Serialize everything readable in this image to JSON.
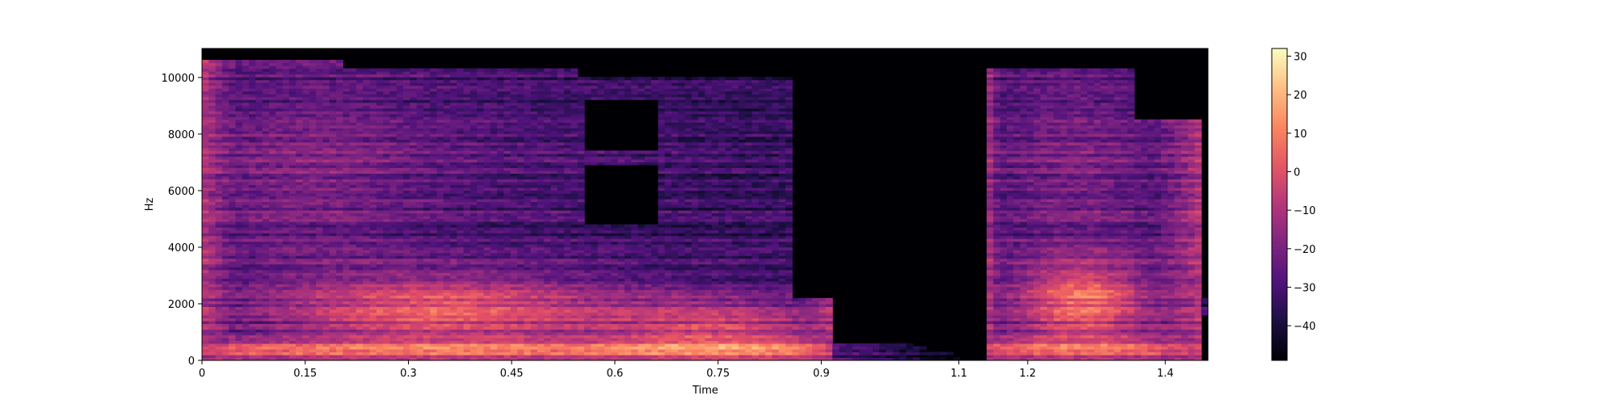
{
  "chart_data": {
    "type": "heatmap",
    "title": "",
    "xlabel": "Time",
    "ylabel": "Hz",
    "xlim": [
      0,
      1.462
    ],
    "ylim": [
      0,
      11025
    ],
    "x_ticks": [
      0,
      0.15,
      0.3,
      0.45,
      0.6,
      0.75,
      0.9,
      1.1,
      1.2,
      1.4
    ],
    "x_tick_labels": [
      "0",
      "0.15",
      "0.3",
      "0.45",
      "0.6",
      "0.75",
      "0.9",
      "1.1",
      "1.2",
      "1.4"
    ],
    "y_ticks": [
      0,
      2000,
      4000,
      6000,
      8000,
      10000
    ],
    "y_tick_labels": [
      "0",
      "2000",
      "4000",
      "6000",
      "8000",
      "10000"
    ],
    "colorbar": {
      "colormap": "magma",
      "range": [
        -49,
        32
      ],
      "ticks": [
        -40,
        -30,
        -20,
        -10,
        0,
        10,
        20,
        30
      ],
      "tick_labels": [
        "−40",
        "−30",
        "−20",
        "−10",
        "0",
        "10",
        "20",
        "30"
      ]
    },
    "silence_intervals": [
      [
        0.91,
        1.14
      ]
    ],
    "segments": [
      {
        "t_start": 0.0,
        "t_end": 0.9,
        "f_max": 10400,
        "peak_db": 22
      },
      {
        "t_start": 1.14,
        "t_end": 1.44,
        "f_max": 10300,
        "peak_db": 24
      }
    ]
  }
}
